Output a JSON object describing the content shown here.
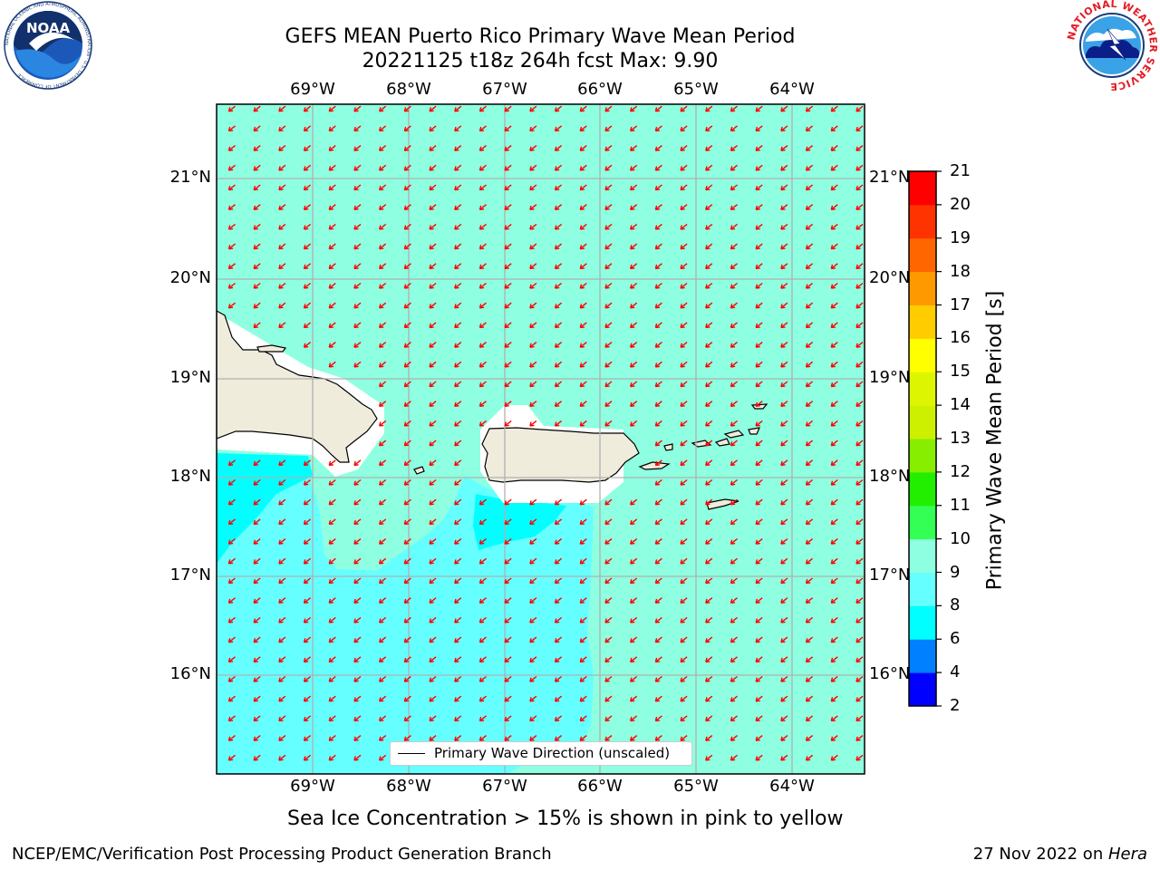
{
  "header": {
    "title_line1": "GEFS MEAN Puerto Rico Primary Wave Mean Period",
    "title_line2": "20221125 t18z 264h fcst   Max: 9.90"
  },
  "logos": {
    "noaa_text": "NOAA",
    "noaa_ring_text": "NATIONAL OCEANIC AND ATMOSPHERIC ADMINISTRATION · U.S. DEPARTMENT OF COMMERCE",
    "nws_ring_text": "NATIONAL WEATHER SERVICE"
  },
  "map": {
    "lon_labels": [
      "69°W",
      "68°W",
      "67°W",
      "66°W",
      "65°W",
      "64°W"
    ],
    "lat_labels": [
      "21°N",
      "20°N",
      "19°N",
      "18°N",
      "17°N",
      "16°N"
    ],
    "legend_label": "Primary Wave Direction (unscaled)",
    "field_colors": {
      "period_9_10": "#8effe0",
      "period_8_9": "#66ffff",
      "period_6_8": "#00ffff",
      "land": "#efecdc",
      "arrow": "#ff0000",
      "grid": "#b0b0b0"
    },
    "wave_direction": "toward southwest"
  },
  "colorbar": {
    "title": "Primary Wave Mean Period [s]",
    "ticks": [
      "21",
      "20",
      "19",
      "18",
      "17",
      "16",
      "15",
      "14",
      "13",
      "12",
      "11",
      "10",
      "9",
      "8",
      "6",
      "4",
      "2"
    ],
    "colors_bottom_to_top": [
      "#0000ff",
      "#0080ff",
      "#00ffff",
      "#66ffff",
      "#8effe0",
      "#33ff55",
      "#22ee00",
      "#88ee00",
      "#ccf000",
      "#ddf500",
      "#ffff00",
      "#ffcc00",
      "#ff9900",
      "#ff6600",
      "#ff3300",
      "#ff0000"
    ]
  },
  "caption": "Sea Ice Concentration > 15% is shown in pink to yellow",
  "footer": {
    "left": "NCEP/EMC/Verification Post Processing Product Generation Branch",
    "right_date": "27 Nov 2022 on ",
    "right_host": "Hera"
  }
}
